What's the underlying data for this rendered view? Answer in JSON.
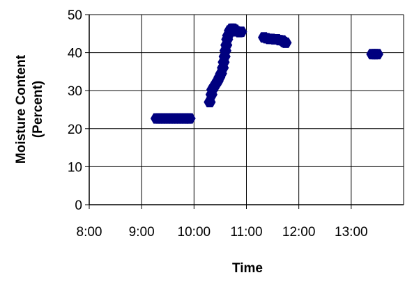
{
  "chart_data": {
    "type": "scatter",
    "title": "",
    "xlabel": "Time",
    "ylabel_lines": [
      "Moisture Content",
      "(Percent)"
    ],
    "xlim": [
      "8:00",
      "14:00"
    ],
    "ylim": [
      0,
      50
    ],
    "x_ticks": [
      "8:00",
      "9:00",
      "10:00",
      "11:00",
      "12:00",
      "13:00"
    ],
    "y_ticks": [
      0,
      10,
      20,
      30,
      40,
      50
    ],
    "grid": true,
    "legend": "none",
    "marker_color": "#00007F",
    "series": [
      {
        "points": [
          [
            "9:17",
            22.7
          ],
          [
            "9:20",
            22.7
          ],
          [
            "9:23",
            22.7
          ],
          [
            "9:26",
            22.7
          ],
          [
            "9:29",
            22.7
          ],
          [
            "9:32",
            22.7
          ],
          [
            "9:35",
            22.7
          ],
          [
            "9:38",
            22.7
          ],
          [
            "9:41",
            22.7
          ],
          [
            "9:44",
            22.7
          ],
          [
            "9:47",
            22.7
          ],
          [
            "9:50",
            22.7
          ],
          [
            "9:53",
            22.7
          ],
          [
            "9:55",
            22.7
          ],
          [
            "10:18",
            27.0
          ],
          [
            "10:20",
            29.0
          ],
          [
            "10:21",
            30.3
          ],
          [
            "10:23",
            31.0
          ],
          [
            "10:25",
            31.8
          ],
          [
            "10:27",
            32.5
          ],
          [
            "10:29",
            33.5
          ],
          [
            "10:31",
            34.5
          ],
          [
            "10:33",
            36.0
          ],
          [
            "10:34",
            37.5
          ],
          [
            "10:35",
            39.0
          ],
          [
            "10:36",
            40.5
          ],
          [
            "10:37",
            42.0
          ],
          [
            "10:38",
            43.5
          ],
          [
            "10:39",
            44.5
          ],
          [
            "10:41",
            45.8
          ],
          [
            "10:43",
            46.3
          ],
          [
            "10:45",
            46.3
          ],
          [
            "10:47",
            46.0
          ],
          [
            "10:49",
            45.6
          ],
          [
            "10:52",
            45.4
          ],
          [
            "10:54",
            45.5
          ],
          [
            "11:20",
            44.0
          ],
          [
            "11:23",
            43.8
          ],
          [
            "11:26",
            43.6
          ],
          [
            "11:29",
            43.6
          ],
          [
            "11:32",
            43.5
          ],
          [
            "11:35",
            43.5
          ],
          [
            "11:38",
            43.3
          ],
          [
            "11:41",
            43.2
          ],
          [
            "11:43",
            42.8
          ],
          [
            "11:45",
            42.6
          ],
          [
            "13:24",
            39.6
          ],
          [
            "13:27",
            39.6
          ],
          [
            "13:30",
            39.6
          ]
        ]
      }
    ]
  }
}
